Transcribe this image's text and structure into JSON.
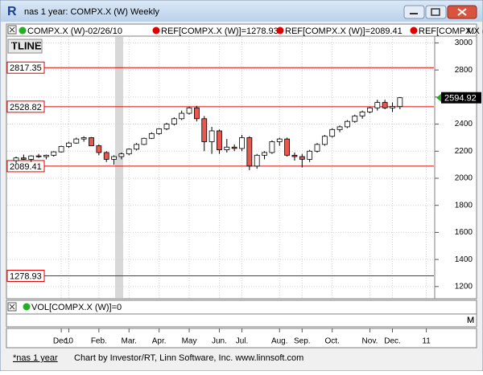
{
  "window": {
    "title": "nas 1 year: COMPX.X (W) Weekly",
    "status_tab": "*nas 1 year",
    "status_text": "Chart by Investor/RT, Linn Software, Inc. www.linnsoft.com"
  },
  "header": {
    "items": [
      "COMPX.X (W)-02/26/10",
      "REF[COMPX.X (W)]=1278.93",
      "REF[COMPX.X (W)]=2089.41",
      "REF[COMPX.X (W)"
    ]
  },
  "panel_label": "TLINE",
  "axis_marker": "M",
  "chart": {
    "type": "candlestick",
    "candles": [
      [
        2130,
        2160,
        2110,
        2150
      ],
      [
        2150,
        2175,
        2135,
        2140
      ],
      [
        2140,
        2170,
        2120,
        2165
      ],
      [
        2165,
        2180,
        2150,
        2160
      ],
      [
        2160,
        2175,
        2140,
        2170
      ],
      [
        2170,
        2200,
        2160,
        2195
      ],
      [
        2195,
        2240,
        2190,
        2235
      ],
      [
        2235,
        2270,
        2225,
        2260
      ],
      [
        2260,
        2300,
        2255,
        2290
      ],
      [
        2290,
        2310,
        2270,
        2300
      ],
      [
        2300,
        2305,
        2250,
        2240
      ],
      [
        2240,
        2250,
        2170,
        2190
      ],
      [
        2190,
        2200,
        2120,
        2140
      ],
      [
        2140,
        2170,
        2100,
        2160
      ],
      [
        2160,
        2190,
        2140,
        2180
      ],
      [
        2180,
        2220,
        2170,
        2215
      ],
      [
        2215,
        2260,
        2205,
        2250
      ],
      [
        2250,
        2300,
        2245,
        2295
      ],
      [
        2295,
        2340,
        2290,
        2330
      ],
      [
        2330,
        2370,
        2320,
        2365
      ],
      [
        2365,
        2410,
        2355,
        2400
      ],
      [
        2400,
        2450,
        2390,
        2440
      ],
      [
        2440,
        2500,
        2430,
        2480
      ],
      [
        2480,
        2530,
        2470,
        2520
      ],
      [
        2520,
        2535,
        2420,
        2440
      ],
      [
        2440,
        2460,
        2200,
        2270
      ],
      [
        2270,
        2380,
        2180,
        2350
      ],
      [
        2350,
        2360,
        2180,
        2210
      ],
      [
        2210,
        2290,
        2190,
        2230
      ],
      [
        2230,
        2250,
        2200,
        2220
      ],
      [
        2220,
        2320,
        2200,
        2300
      ],
      [
        2300,
        2310,
        2060,
        2090
      ],
      [
        2090,
        2180,
        2070,
        2170
      ],
      [
        2170,
        2200,
        2140,
        2190
      ],
      [
        2190,
        2280,
        2180,
        2270
      ],
      [
        2270,
        2300,
        2240,
        2290
      ],
      [
        2290,
        2300,
        2160,
        2170
      ],
      [
        2170,
        2190,
        2130,
        2160
      ],
      [
        2160,
        2180,
        2080,
        2140
      ],
      [
        2140,
        2210,
        2120,
        2200
      ],
      [
        2200,
        2260,
        2190,
        2250
      ],
      [
        2250,
        2320,
        2240,
        2310
      ],
      [
        2310,
        2370,
        2300,
        2360
      ],
      [
        2360,
        2390,
        2340,
        2380
      ],
      [
        2380,
        2430,
        2370,
        2420
      ],
      [
        2420,
        2470,
        2410,
        2460
      ],
      [
        2460,
        2500,
        2440,
        2490
      ],
      [
        2490,
        2530,
        2480,
        2520
      ],
      [
        2520,
        2580,
        2500,
        2560
      ],
      [
        2560,
        2580,
        2510,
        2520
      ],
      [
        2520,
        2560,
        2490,
        2530
      ],
      [
        2530,
        2600,
        2510,
        2594.92
      ]
    ],
    "up_color": "#ffffff",
    "down_color": "#e8584f",
    "ylim": [
      1110,
      3050
    ],
    "yticks": [
      1200,
      1400,
      1600,
      1800,
      2000,
      2200,
      2400,
      2600,
      2800,
      3000
    ],
    "grid": true,
    "ref_lines": [
      2817.35,
      2528.82,
      2089.41,
      1278.93
    ],
    "ref_color": "#e00000",
    "last_price": 2594.92,
    "x_labels": [
      "Dec.",
      "10",
      "Feb.",
      "Mar.",
      "Apr.",
      "May",
      "Jun.",
      "Jul.",
      "Aug.",
      "Sep.",
      "Oct.",
      "Nov.",
      "Dec.",
      "11"
    ]
  },
  "volume": {
    "label": "VOL[COMPX.X (W)]=0"
  }
}
